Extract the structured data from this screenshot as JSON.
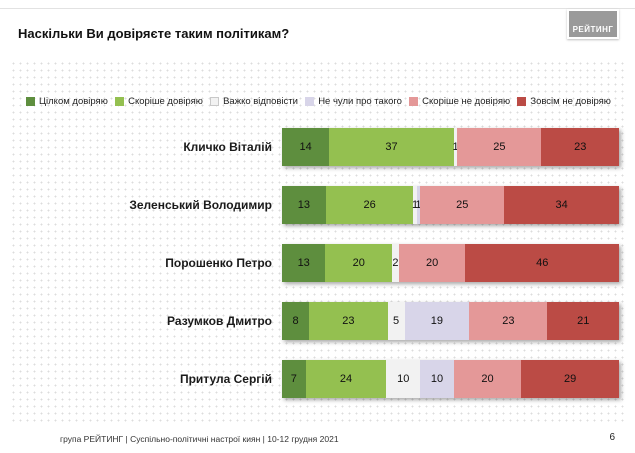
{
  "title": "Наскільки Ви довіряєте таким політикам?",
  "logo_text": "РЕЙТИНГ",
  "footer": {
    "text": "група РЕЙТИНГ | Суспільно-політичні настрої киян | 10-12 грудня 2021",
    "page": "6"
  },
  "chart_data": {
    "type": "bar",
    "orientation": "horizontal-stacked",
    "title": "Наскільки Ви довіряєте таким політикам?",
    "xlim": [
      0,
      100
    ],
    "legend_position": "top",
    "grid": "dotted-background",
    "categories": [
      "Кличко Віталій",
      "Зеленський Володимир",
      "Порошенко Петро",
      "Разумков Дмитро",
      "Притула Сергій"
    ],
    "series": [
      {
        "name": "Цілком довіряю",
        "color": "#5e8e3e",
        "values": [
          14,
          13,
          13,
          8,
          7
        ]
      },
      {
        "name": "Скоріше довіряю",
        "color": "#94c050",
        "values": [
          37,
          26,
          20,
          23,
          24
        ]
      },
      {
        "name": "Важко відповісти",
        "color": "#f2f2f2",
        "border": "#c9c9c9",
        "values": [
          1,
          1,
          2,
          5,
          10
        ]
      },
      {
        "name": "Не чули про такого",
        "color": "#d8d5e9",
        "values": [
          0,
          1,
          0,
          19,
          10
        ]
      },
      {
        "name": "Скоріше не довіряю",
        "color": "#e49898",
        "values": [
          25,
          25,
          20,
          23,
          20
        ]
      },
      {
        "name": "Зовсім не довіряю",
        "color": "#bb4b45",
        "values": [
          23,
          34,
          46,
          21,
          29
        ]
      }
    ]
  }
}
